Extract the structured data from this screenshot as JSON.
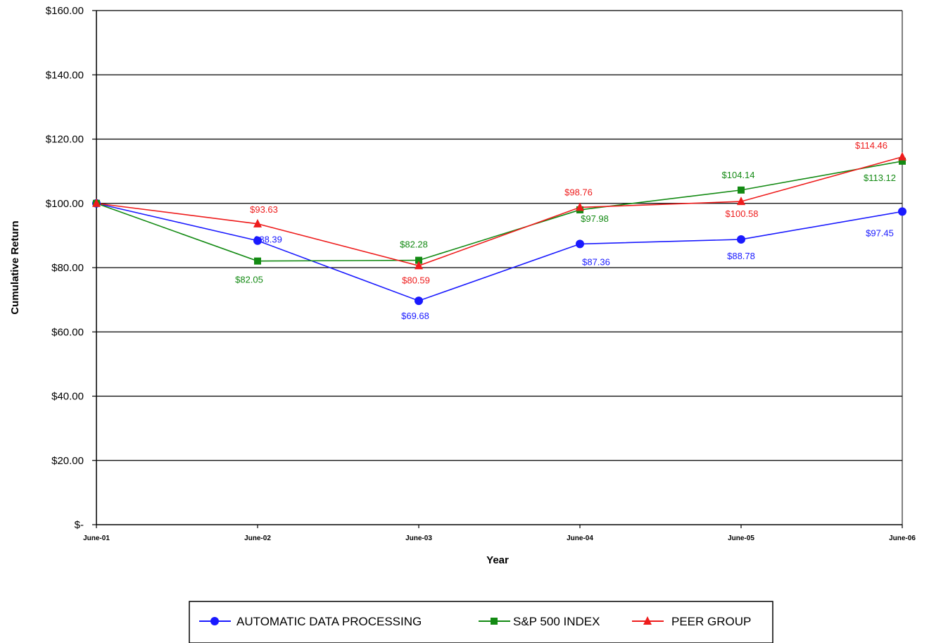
{
  "chart_data": {
    "type": "line",
    "categories": [
      "June-01",
      "June-02",
      "June-03",
      "June-04",
      "June-05",
      "June-06"
    ],
    "ylabel": "Cumulative Return",
    "xlabel": "Year",
    "ylim": [
      0,
      160
    ],
    "yticks": [
      0,
      20,
      40,
      60,
      80,
      100,
      120,
      140,
      160
    ],
    "ytick_labels": [
      "$-",
      "$20.00",
      "$40.00",
      "$60.00",
      "$80.00",
      "$100.00",
      "$120.00",
      "$140.00",
      "$160.00"
    ],
    "grid": true,
    "legend_position": "bottom",
    "series": [
      {
        "name": "AUTOMATIC DATA PROCESSING",
        "color": "#1a1aff",
        "marker": "circle",
        "values": [
          100,
          88.39,
          69.68,
          87.36,
          88.78,
          97.45
        ],
        "labels": [
          "",
          "$88.39",
          "$69.68",
          "$87.36",
          "$88.78",
          "$97.45"
        ]
      },
      {
        "name": "S&P 500 INDEX",
        "color": "#138a13",
        "marker": "square",
        "values": [
          100,
          82.05,
          82.28,
          97.98,
          104.14,
          113.12
        ],
        "labels": [
          "",
          "$82.05",
          "$82.28",
          "$97.98",
          "$104.14",
          "$113.12"
        ]
      },
      {
        "name": "PEER GROUP",
        "color": "#ee1c1c",
        "marker": "triangle",
        "values": [
          100,
          93.63,
          80.59,
          98.76,
          100.58,
          114.46
        ],
        "labels": [
          "",
          "$93.63",
          "$80.59",
          "$98.76",
          "$100.58",
          "$114.46"
        ]
      }
    ]
  }
}
